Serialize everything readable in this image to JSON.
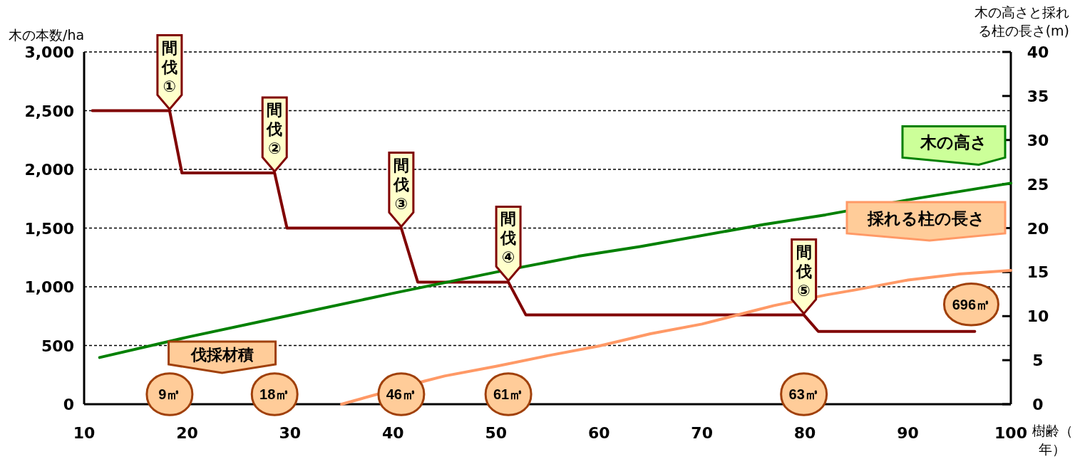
{
  "chart_data": {
    "type": "line",
    "xlabel": "樹齢（年）",
    "ylabel": "木の本数/ha",
    "y2label": "木の高さと採れる柱の長さ(m)",
    "xlim": [
      10,
      100
    ],
    "xticks": [
      10,
      20,
      30,
      40,
      50,
      60,
      70,
      80,
      90,
      100
    ],
    "ylim": [
      0,
      3000
    ],
    "yticks": [
      {
        "value": 0,
        "label": "0"
      },
      {
        "value": 500,
        "label": "500"
      },
      {
        "value": 1000,
        "label": "1,000"
      },
      {
        "value": 1500,
        "label": "1,500"
      },
      {
        "value": 2000,
        "label": "2,000"
      },
      {
        "value": 2500,
        "label": "2,500"
      },
      {
        "value": 3000,
        "label": "3,000"
      }
    ],
    "y2lim": [
      0,
      40
    ],
    "y2ticks": [
      0,
      5,
      10,
      15,
      20,
      25,
      30,
      35,
      40
    ],
    "grid": "y",
    "marker": "none",
    "series": [
      {
        "color": "#800000",
        "x": [
          10.8,
          18.3,
          19.5,
          28.5,
          29.7,
          40.8,
          42.4,
          51.2,
          52.9,
          79.9,
          81.3,
          96.5
        ],
        "values": [
          2500,
          2500,
          1970,
          1970,
          1500,
          1500,
          1040,
          1040,
          760,
          760,
          620,
          620
        ]
      },
      {
        "name": "木の高さ",
        "color": "#008000",
        "axis": "y2",
        "x": [
          11.5,
          20,
          30,
          40,
          50,
          58,
          64,
          76,
          82,
          90,
          100
        ],
        "values": [
          5.3,
          7.6,
          10.1,
          12.6,
          15.0,
          16.8,
          17.9,
          20.4,
          21.5,
          23.2,
          25.1
        ]
      },
      {
        "name": "採れる柱の長さ",
        "color": "#ff9966",
        "axis": "y2",
        "x": [
          35,
          43,
          45,
          50,
          55,
          60,
          65,
          70,
          75,
          77,
          82,
          85,
          90,
          95,
          100
        ],
        "values": [
          0,
          2.6,
          3.2,
          4.3,
          5.5,
          6.6,
          8.0,
          9.1,
          10.6,
          11.2,
          12.4,
          13.0,
          14.1,
          14.8,
          15.2
        ]
      }
    ],
    "annotations": [
      {
        "text": "間伐①",
        "x": 18.3,
        "y": 2500
      },
      {
        "text": "間伐②",
        "x": 28.5,
        "y": 1970
      },
      {
        "text": "間伐③",
        "x": 40.8,
        "y": 1500
      },
      {
        "text": "間伐④",
        "x": 51.2,
        "y": 1040
      },
      {
        "text": "間伐⑤",
        "x": 79.9,
        "y": 760
      },
      "伐採材積",
      "9㎥",
      "18㎥",
      "46㎥",
      "61㎥",
      "63㎥",
      "696㎥"
    ]
  }
}
